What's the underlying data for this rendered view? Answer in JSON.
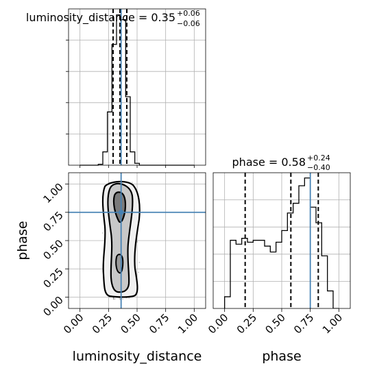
{
  "chart_data": [
    {
      "type": "histogram",
      "panel": "top-left",
      "title": {
        "label": "luminosity_distance = 0.35",
        "sup": "+0.06",
        "sub": "−0.06"
      },
      "xlim": [
        -0.1,
        1.1
      ],
      "bin_edges": [
        0.0,
        0.04,
        0.08,
        0.12,
        0.16,
        0.2,
        0.24,
        0.28,
        0.32,
        0.36,
        0.4,
        0.44,
        0.48,
        0.52,
        0.56,
        0.6,
        0.64,
        0.68,
        0.72,
        0.76,
        0.8,
        0.84,
        0.88,
        0.92,
        0.96,
        1.0
      ],
      "counts": [
        0,
        0,
        0,
        0,
        1,
        14,
        56,
        127,
        158,
        153,
        72,
        14,
        2,
        0,
        0,
        0,
        0,
        0,
        0,
        0,
        0,
        0,
        0,
        0,
        0
      ],
      "quantiles": [
        0.29,
        0.35,
        0.41
      ],
      "truth": 0.36,
      "grid": true
    },
    {
      "type": "2d-histogram-contour",
      "panel": "bottom-left",
      "xlabel": "luminosity_distance",
      "ylabel": "phase",
      "xlim": [
        -0.1,
        1.1
      ],
      "ylim": [
        -0.1,
        1.1
      ],
      "xticks": [
        "0.00",
        "0.25",
        "0.50",
        "0.75",
        "1.00"
      ],
      "yticks": [
        "0.00",
        "0.25",
        "0.50",
        "0.75",
        "1.00"
      ],
      "truth": {
        "x": 0.36,
        "y": 0.75
      },
      "grid": true
    },
    {
      "type": "histogram",
      "panel": "bottom-right",
      "title": {
        "label": "phase = 0.58",
        "sup": "+0.24",
        "sub": "−0.40"
      },
      "xlabel": "phase",
      "xlim": [
        -0.1,
        1.1
      ],
      "xticks": [
        "0.00",
        "0.25",
        "0.50",
        "0.75",
        "1.00"
      ],
      "bin_edges": [
        0.0,
        0.05,
        0.1,
        0.15,
        0.2,
        0.25,
        0.3,
        0.35,
        0.4,
        0.45,
        0.5,
        0.55,
        0.6,
        0.65,
        0.7,
        0.75,
        0.8,
        0.85,
        0.9,
        0.95,
        1.0
      ],
      "counts": [
        6,
        35,
        33,
        36,
        34,
        35,
        35,
        32,
        29,
        34,
        40,
        49,
        54,
        63,
        67,
        52,
        44,
        27,
        9,
        0
      ],
      "quantiles": [
        0.18,
        0.58,
        0.82
      ],
      "truth": 0.75,
      "grid": true
    }
  ]
}
